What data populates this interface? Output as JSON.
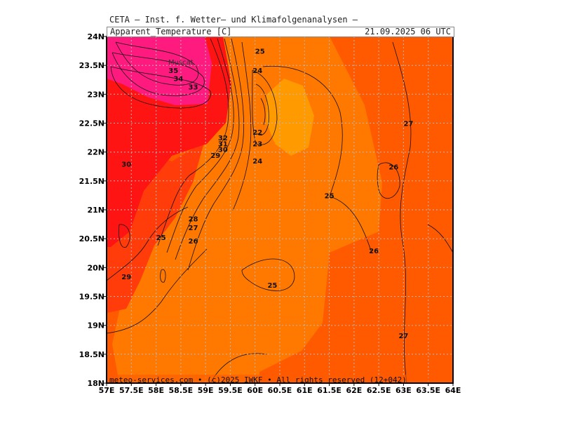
{
  "header": {
    "title": "CETA — Inst. f. Wetter— und Klimafolgenanalysen —",
    "variable": "Apparent_Temperature [C]",
    "valid_time": "21.09.2025 06 UTC"
  },
  "footer": {
    "credit": "meteo-services.com • (c)2025 IWKF • All rights reserved (12+042)"
  },
  "axes": {
    "x_labels": [
      "57E",
      "57.5E",
      "58E",
      "58.5E",
      "59E",
      "59.5E",
      "60E",
      "60.5E",
      "61E",
      "61.5E",
      "62E",
      "62.5E",
      "63E",
      "63.5E",
      "64E"
    ],
    "y_labels": [
      "24N",
      "23.5N",
      "23N",
      "22.5N",
      "22N",
      "21.5N",
      "21N",
      "20.5N",
      "20N",
      "19.5N",
      "19N",
      "18.5N",
      "18N"
    ]
  },
  "place_labels": [
    "Muscat"
  ],
  "contour_labels": [
    {
      "text": "25",
      "lon": 60.1,
      "lat": 23.7
    },
    {
      "text": "24",
      "lon": 60.05,
      "lat": 23.37
    },
    {
      "text": "35",
      "lon": 58.35,
      "lat": 23.37
    },
    {
      "text": "34",
      "lon": 58.45,
      "lat": 23.23
    },
    {
      "text": "33",
      "lon": 58.75,
      "lat": 23.08
    },
    {
      "text": "27",
      "lon": 63.1,
      "lat": 22.45
    },
    {
      "text": "32",
      "lon": 59.35,
      "lat": 22.2
    },
    {
      "text": "31",
      "lon": 59.35,
      "lat": 22.1
    },
    {
      "text": "30",
      "lon": 59.35,
      "lat": 22.0
    },
    {
      "text": "29",
      "lon": 59.2,
      "lat": 21.9
    },
    {
      "text": "22",
      "lon": 60.05,
      "lat": 22.3
    },
    {
      "text": "23",
      "lon": 60.05,
      "lat": 22.1
    },
    {
      "text": "24",
      "lon": 60.05,
      "lat": 21.8
    },
    {
      "text": "30",
      "lon": 57.4,
      "lat": 21.75
    },
    {
      "text": "26",
      "lon": 62.8,
      "lat": 21.7
    },
    {
      "text": "25",
      "lon": 61.5,
      "lat": 21.2
    },
    {
      "text": "28",
      "lon": 58.75,
      "lat": 20.8
    },
    {
      "text": "27",
      "lon": 58.75,
      "lat": 20.65
    },
    {
      "text": "25",
      "lon": 58.1,
      "lat": 20.48
    },
    {
      "text": "26",
      "lon": 58.75,
      "lat": 20.42
    },
    {
      "text": "26",
      "lon": 62.4,
      "lat": 20.25
    },
    {
      "text": "29",
      "lon": 57.4,
      "lat": 19.8
    },
    {
      "text": "25",
      "lon": 60.35,
      "lat": 19.65
    },
    {
      "text": "27",
      "lon": 63.0,
      "lat": 18.78
    }
  ],
  "colors": {
    "hot_magenta": "#ff1a80",
    "red": "#ff1414",
    "red_orange": "#ff3c0a",
    "dark_orange": "#ff5a00",
    "orange": "#ff7800",
    "light_orange": "#ff9a00"
  },
  "map": {
    "lon_range": [
      57,
      64
    ],
    "lat_range": [
      18,
      24
    ],
    "grid": "dotted"
  }
}
